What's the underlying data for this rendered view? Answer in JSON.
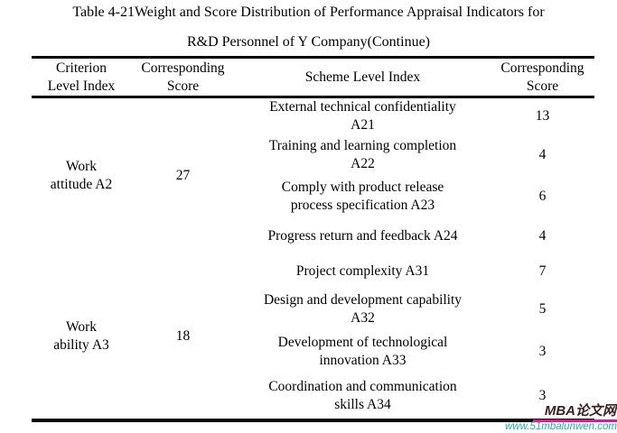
{
  "title": {
    "line1": "Table 4-21Weight and Score Distribution of Performance Appraisal Indicators for",
    "line2": "R&D Personnel of Y Company(Continue)"
  },
  "table": {
    "headers": [
      {
        "lines": [
          "Criterion",
          "Level Index"
        ]
      },
      {
        "lines": [
          "Corresponding",
          "Score"
        ]
      },
      {
        "lines": [
          "Scheme Level Index"
        ]
      },
      {
        "lines": [
          "Corresponding",
          "Score"
        ]
      }
    ],
    "groups": [
      {
        "criterion": {
          "lines": [
            "Work",
            "attitude A2"
          ]
        },
        "score": "27",
        "rows": [
          {
            "scheme": {
              "lines": [
                "External technical confidentiality",
                "A21"
              ]
            },
            "score": "13"
          },
          {
            "scheme": {
              "lines": [
                "Training and learning completion",
                "A22"
              ]
            },
            "score": "4"
          },
          {
            "scheme": {
              "lines": [
                "Comply with product release",
                "process specification A23"
              ]
            },
            "score": "6"
          },
          {
            "scheme": {
              "lines": [
                "Progress return and feedback A24"
              ]
            },
            "score": "4"
          }
        ]
      },
      {
        "criterion": {
          "lines": [
            "Work",
            "ability A3"
          ]
        },
        "score": "18",
        "rows": [
          {
            "scheme": {
              "lines": [
                "Project complexity A31"
              ]
            },
            "score": "7"
          },
          {
            "scheme": {
              "lines": [
                "Design and development capability",
                "A32"
              ]
            },
            "score": "5"
          },
          {
            "scheme": {
              "lines": [
                "Development of technological",
                "innovation A33"
              ]
            },
            "score": "3"
          },
          {
            "scheme": {
              "lines": [
                "Coordination and communication",
                "skills A34"
              ]
            },
            "score": "3"
          }
        ]
      }
    ]
  },
  "watermark": {
    "brand": "MBA论文网",
    "url": "www.51mbalunwen.com",
    "brand_color": "#3a2222",
    "url_color": "#2fa8a8",
    "underline_color": "#ed0e9c"
  }
}
